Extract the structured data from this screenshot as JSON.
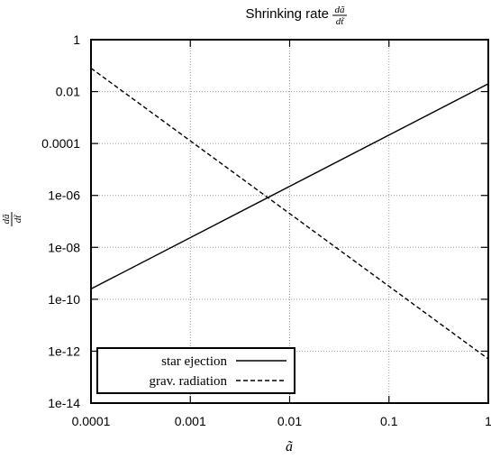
{
  "chart_data": {
    "type": "line",
    "title": "Shrinking rate",
    "title_math": {
      "num": "dã",
      "den": "dt̃"
    },
    "xlabel": "ã",
    "ylabel": {
      "num": "dã",
      "den": "dt̃"
    },
    "x_scale": "log",
    "y_scale": "log",
    "xlim": [
      0.0001,
      1
    ],
    "ylim": [
      1e-14,
      1
    ],
    "grid": true,
    "legend_position": "bottom-left",
    "x_ticks": [
      {
        "value": 0.0001,
        "label": "0.0001"
      },
      {
        "value": 0.001,
        "label": "0.001"
      },
      {
        "value": 0.01,
        "label": "0.01"
      },
      {
        "value": 0.1,
        "label": "0.1"
      },
      {
        "value": 1,
        "label": "1"
      }
    ],
    "y_ticks": [
      {
        "value": 1,
        "label": "1"
      },
      {
        "value": 0.01,
        "label": "0.01"
      },
      {
        "value": 0.0001,
        "label": "0.0001"
      },
      {
        "value": 1e-06,
        "label": "1e-06"
      },
      {
        "value": 1e-08,
        "label": "1e-08"
      },
      {
        "value": 1e-10,
        "label": "1e-10"
      },
      {
        "value": 1e-12,
        "label": "1e-12"
      },
      {
        "value": 1e-14,
        "label": "1e-14"
      }
    ],
    "series": [
      {
        "name": "star ejection",
        "style": "solid",
        "x": [
          0.0001,
          1
        ],
        "y": [
          2.5e-10,
          0.02
        ]
      },
      {
        "name": "grav. radiation",
        "style": "dashed",
        "x": [
          0.0001,
          1
        ],
        "y": [
          0.08,
          5e-13
        ]
      }
    ]
  },
  "colors": {
    "line": "#000000",
    "grid": "#999999",
    "background": "#ffffff"
  }
}
